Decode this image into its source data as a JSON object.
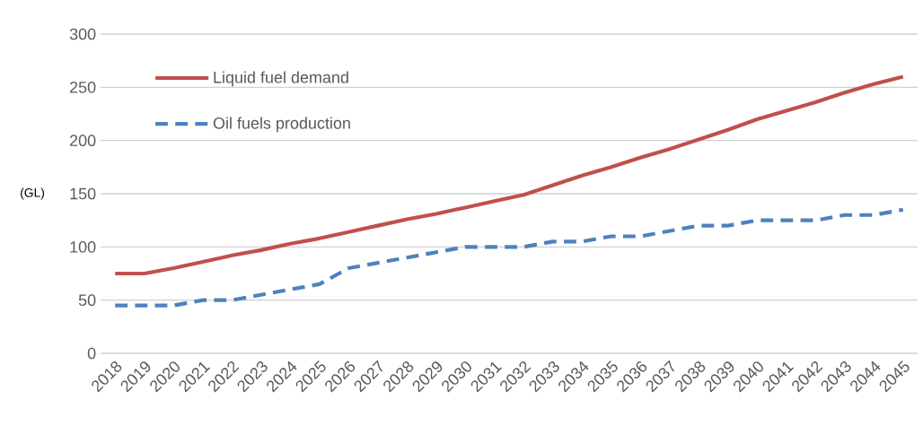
{
  "chart_data": {
    "type": "line",
    "ylabel": "(GL)",
    "categories": [
      "2018",
      "2019",
      "2020",
      "2021",
      "2022",
      "2023",
      "2024",
      "2025",
      "2026",
      "2027",
      "2028",
      "2029",
      "2030",
      "2031",
      "2032",
      "2033",
      "2034",
      "2035",
      "2036",
      "2037",
      "2038",
      "2039",
      "2040",
      "2041",
      "2042",
      "2043",
      "2044",
      "2045"
    ],
    "series": [
      {
        "name": "Liquid fuel demand",
        "color": "#c0504d",
        "line_style": "solid",
        "values": [
          75,
          75,
          80,
          86,
          92,
          97,
          103,
          108,
          114,
          120,
          126,
          131,
          137,
          143,
          149,
          158,
          167,
          175,
          184,
          192,
          201,
          210,
          220,
          228,
          236,
          245,
          253,
          260
        ]
      },
      {
        "name": "Oil fuels production",
        "color": "#4f81bd",
        "line_style": "dashed",
        "values": [
          45,
          45,
          45,
          50,
          50,
          55,
          60,
          65,
          80,
          85,
          90,
          95,
          100,
          100,
          100,
          105,
          105,
          110,
          110,
          115,
          120,
          120,
          125,
          125,
          125,
          130,
          130,
          135
        ]
      }
    ],
    "ylim": [
      0,
      300
    ],
    "yticks": [
      0,
      50,
      100,
      150,
      200,
      250,
      300
    ],
    "grid": "y",
    "legend": "top left",
    "marker": "none"
  }
}
